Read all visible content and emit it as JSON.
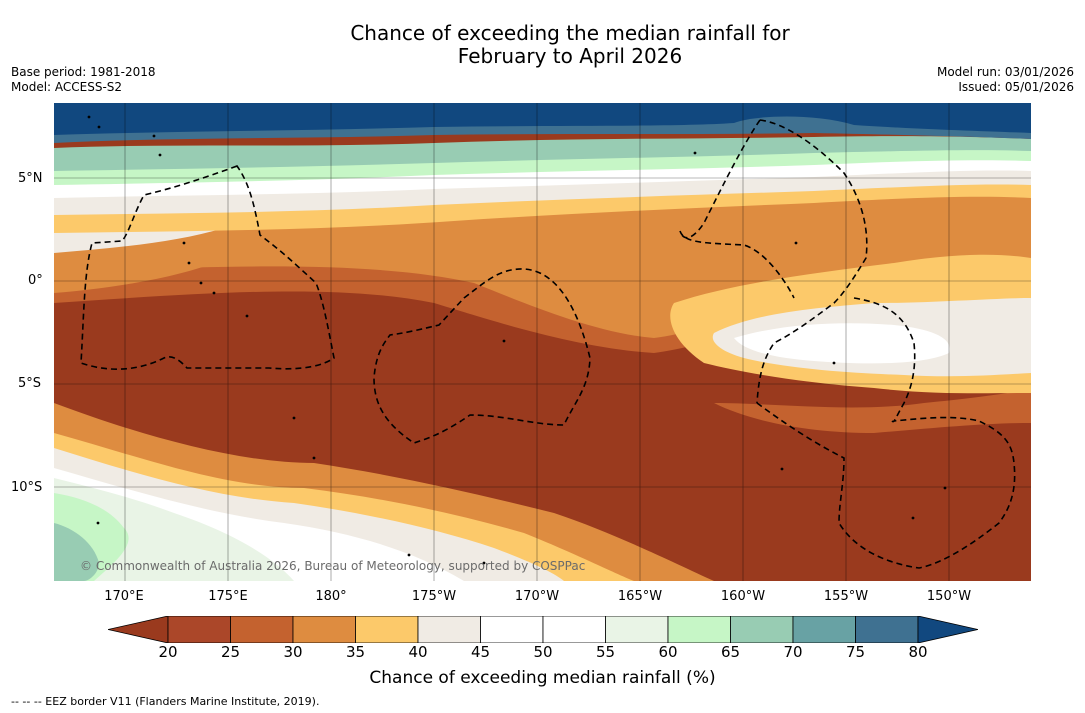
{
  "title_line1": "Chance of exceeding the median rainfall for",
  "title_line2": "February to April 2026",
  "meta_left": {
    "base_period": "Base period: 1981-2018",
    "model": "Model: ACCESS-S2"
  },
  "meta_right": {
    "model_run": "Model run: 03/01/2026",
    "issued": "Issued: 05/01/2026"
  },
  "map": {
    "credit": "© Commonwealth of Australia 2026, Bureau of Meteorology, supported by COSPPac",
    "lat_labels": [
      "5°N",
      "0°",
      "5°S",
      "10°S"
    ],
    "lon_labels": [
      "170°E",
      "175°E",
      "180°",
      "175°W",
      "170°W",
      "165°W",
      "160°W",
      "155°W",
      "150°W"
    ]
  },
  "colorbar": {
    "label": "Chance of exceeding median rainfall (%)",
    "ticks": [
      "20",
      "25",
      "30",
      "35",
      "40",
      "45",
      "50",
      "55",
      "60",
      "65",
      "70",
      "75",
      "80"
    ],
    "colors": [
      "#9a3a1e",
      "#ab4729",
      "#c4622f",
      "#de8c40",
      "#fcc96a",
      "#f0ebe4",
      "#ffffff",
      "#ffffff",
      "#e9f4e6",
      "#c6f6c6",
      "#98ccb3",
      "#68a2a4",
      "#3f7191",
      "#11487f"
    ]
  },
  "footnote": "--  --  -- EEZ border V11 (Flanders Marine Institute, 2019)."
}
